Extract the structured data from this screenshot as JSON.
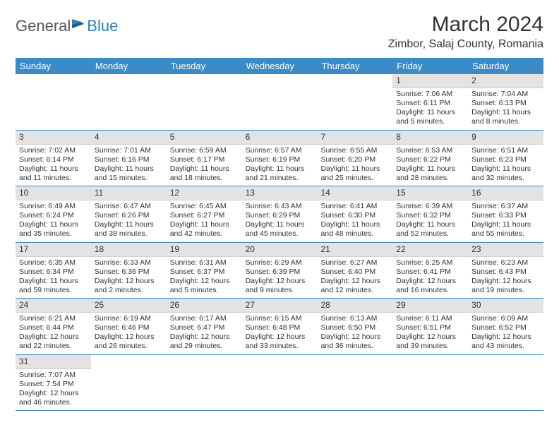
{
  "logo": {
    "part1": "General",
    "part2": "Blue"
  },
  "title": "March 2024",
  "location": "Zimbor, Salaj County, Romania",
  "colors": {
    "header_bg": "#3b8bc8",
    "header_text": "#ffffff",
    "daynum_bg": "#e3e3e3",
    "border": "#3b8bc8",
    "text": "#333333",
    "background": "#ffffff"
  },
  "day_names": [
    "Sunday",
    "Monday",
    "Tuesday",
    "Wednesday",
    "Thursday",
    "Friday",
    "Saturday"
  ],
  "weeks": [
    [
      null,
      null,
      null,
      null,
      null,
      {
        "n": "1",
        "sr": "Sunrise: 7:06 AM",
        "ss": "Sunset: 6:11 PM",
        "dl": "Daylight: 11 hours and 5 minutes."
      },
      {
        "n": "2",
        "sr": "Sunrise: 7:04 AM",
        "ss": "Sunset: 6:13 PM",
        "dl": "Daylight: 11 hours and 8 minutes."
      }
    ],
    [
      {
        "n": "3",
        "sr": "Sunrise: 7:02 AM",
        "ss": "Sunset: 6:14 PM",
        "dl": "Daylight: 11 hours and 11 minutes."
      },
      {
        "n": "4",
        "sr": "Sunrise: 7:01 AM",
        "ss": "Sunset: 6:16 PM",
        "dl": "Daylight: 11 hours and 15 minutes."
      },
      {
        "n": "5",
        "sr": "Sunrise: 6:59 AM",
        "ss": "Sunset: 6:17 PM",
        "dl": "Daylight: 11 hours and 18 minutes."
      },
      {
        "n": "6",
        "sr": "Sunrise: 6:57 AM",
        "ss": "Sunset: 6:19 PM",
        "dl": "Daylight: 11 hours and 21 minutes."
      },
      {
        "n": "7",
        "sr": "Sunrise: 6:55 AM",
        "ss": "Sunset: 6:20 PM",
        "dl": "Daylight: 11 hours and 25 minutes."
      },
      {
        "n": "8",
        "sr": "Sunrise: 6:53 AM",
        "ss": "Sunset: 6:22 PM",
        "dl": "Daylight: 11 hours and 28 minutes."
      },
      {
        "n": "9",
        "sr": "Sunrise: 6:51 AM",
        "ss": "Sunset: 6:23 PM",
        "dl": "Daylight: 11 hours and 32 minutes."
      }
    ],
    [
      {
        "n": "10",
        "sr": "Sunrise: 6:49 AM",
        "ss": "Sunset: 6:24 PM",
        "dl": "Daylight: 11 hours and 35 minutes."
      },
      {
        "n": "11",
        "sr": "Sunrise: 6:47 AM",
        "ss": "Sunset: 6:26 PM",
        "dl": "Daylight: 11 hours and 38 minutes."
      },
      {
        "n": "12",
        "sr": "Sunrise: 6:45 AM",
        "ss": "Sunset: 6:27 PM",
        "dl": "Daylight: 11 hours and 42 minutes."
      },
      {
        "n": "13",
        "sr": "Sunrise: 6:43 AM",
        "ss": "Sunset: 6:29 PM",
        "dl": "Daylight: 11 hours and 45 minutes."
      },
      {
        "n": "14",
        "sr": "Sunrise: 6:41 AM",
        "ss": "Sunset: 6:30 PM",
        "dl": "Daylight: 11 hours and 48 minutes."
      },
      {
        "n": "15",
        "sr": "Sunrise: 6:39 AM",
        "ss": "Sunset: 6:32 PM",
        "dl": "Daylight: 11 hours and 52 minutes."
      },
      {
        "n": "16",
        "sr": "Sunrise: 6:37 AM",
        "ss": "Sunset: 6:33 PM",
        "dl": "Daylight: 11 hours and 55 minutes."
      }
    ],
    [
      {
        "n": "17",
        "sr": "Sunrise: 6:35 AM",
        "ss": "Sunset: 6:34 PM",
        "dl": "Daylight: 11 hours and 59 minutes."
      },
      {
        "n": "18",
        "sr": "Sunrise: 6:33 AM",
        "ss": "Sunset: 6:36 PM",
        "dl": "Daylight: 12 hours and 2 minutes."
      },
      {
        "n": "19",
        "sr": "Sunrise: 6:31 AM",
        "ss": "Sunset: 6:37 PM",
        "dl": "Daylight: 12 hours and 5 minutes."
      },
      {
        "n": "20",
        "sr": "Sunrise: 6:29 AM",
        "ss": "Sunset: 6:39 PM",
        "dl": "Daylight: 12 hours and 9 minutes."
      },
      {
        "n": "21",
        "sr": "Sunrise: 6:27 AM",
        "ss": "Sunset: 6:40 PM",
        "dl": "Daylight: 12 hours and 12 minutes."
      },
      {
        "n": "22",
        "sr": "Sunrise: 6:25 AM",
        "ss": "Sunset: 6:41 PM",
        "dl": "Daylight: 12 hours and 16 minutes."
      },
      {
        "n": "23",
        "sr": "Sunrise: 6:23 AM",
        "ss": "Sunset: 6:43 PM",
        "dl": "Daylight: 12 hours and 19 minutes."
      }
    ],
    [
      {
        "n": "24",
        "sr": "Sunrise: 6:21 AM",
        "ss": "Sunset: 6:44 PM",
        "dl": "Daylight: 12 hours and 22 minutes."
      },
      {
        "n": "25",
        "sr": "Sunrise: 6:19 AM",
        "ss": "Sunset: 6:46 PM",
        "dl": "Daylight: 12 hours and 26 minutes."
      },
      {
        "n": "26",
        "sr": "Sunrise: 6:17 AM",
        "ss": "Sunset: 6:47 PM",
        "dl": "Daylight: 12 hours and 29 minutes."
      },
      {
        "n": "27",
        "sr": "Sunrise: 6:15 AM",
        "ss": "Sunset: 6:48 PM",
        "dl": "Daylight: 12 hours and 33 minutes."
      },
      {
        "n": "28",
        "sr": "Sunrise: 6:13 AM",
        "ss": "Sunset: 6:50 PM",
        "dl": "Daylight: 12 hours and 36 minutes."
      },
      {
        "n": "29",
        "sr": "Sunrise: 6:11 AM",
        "ss": "Sunset: 6:51 PM",
        "dl": "Daylight: 12 hours and 39 minutes."
      },
      {
        "n": "30",
        "sr": "Sunrise: 6:09 AM",
        "ss": "Sunset: 6:52 PM",
        "dl": "Daylight: 12 hours and 43 minutes."
      }
    ],
    [
      {
        "n": "31",
        "sr": "Sunrise: 7:07 AM",
        "ss": "Sunset: 7:54 PM",
        "dl": "Daylight: 12 hours and 46 minutes."
      },
      null,
      null,
      null,
      null,
      null,
      null
    ]
  ]
}
